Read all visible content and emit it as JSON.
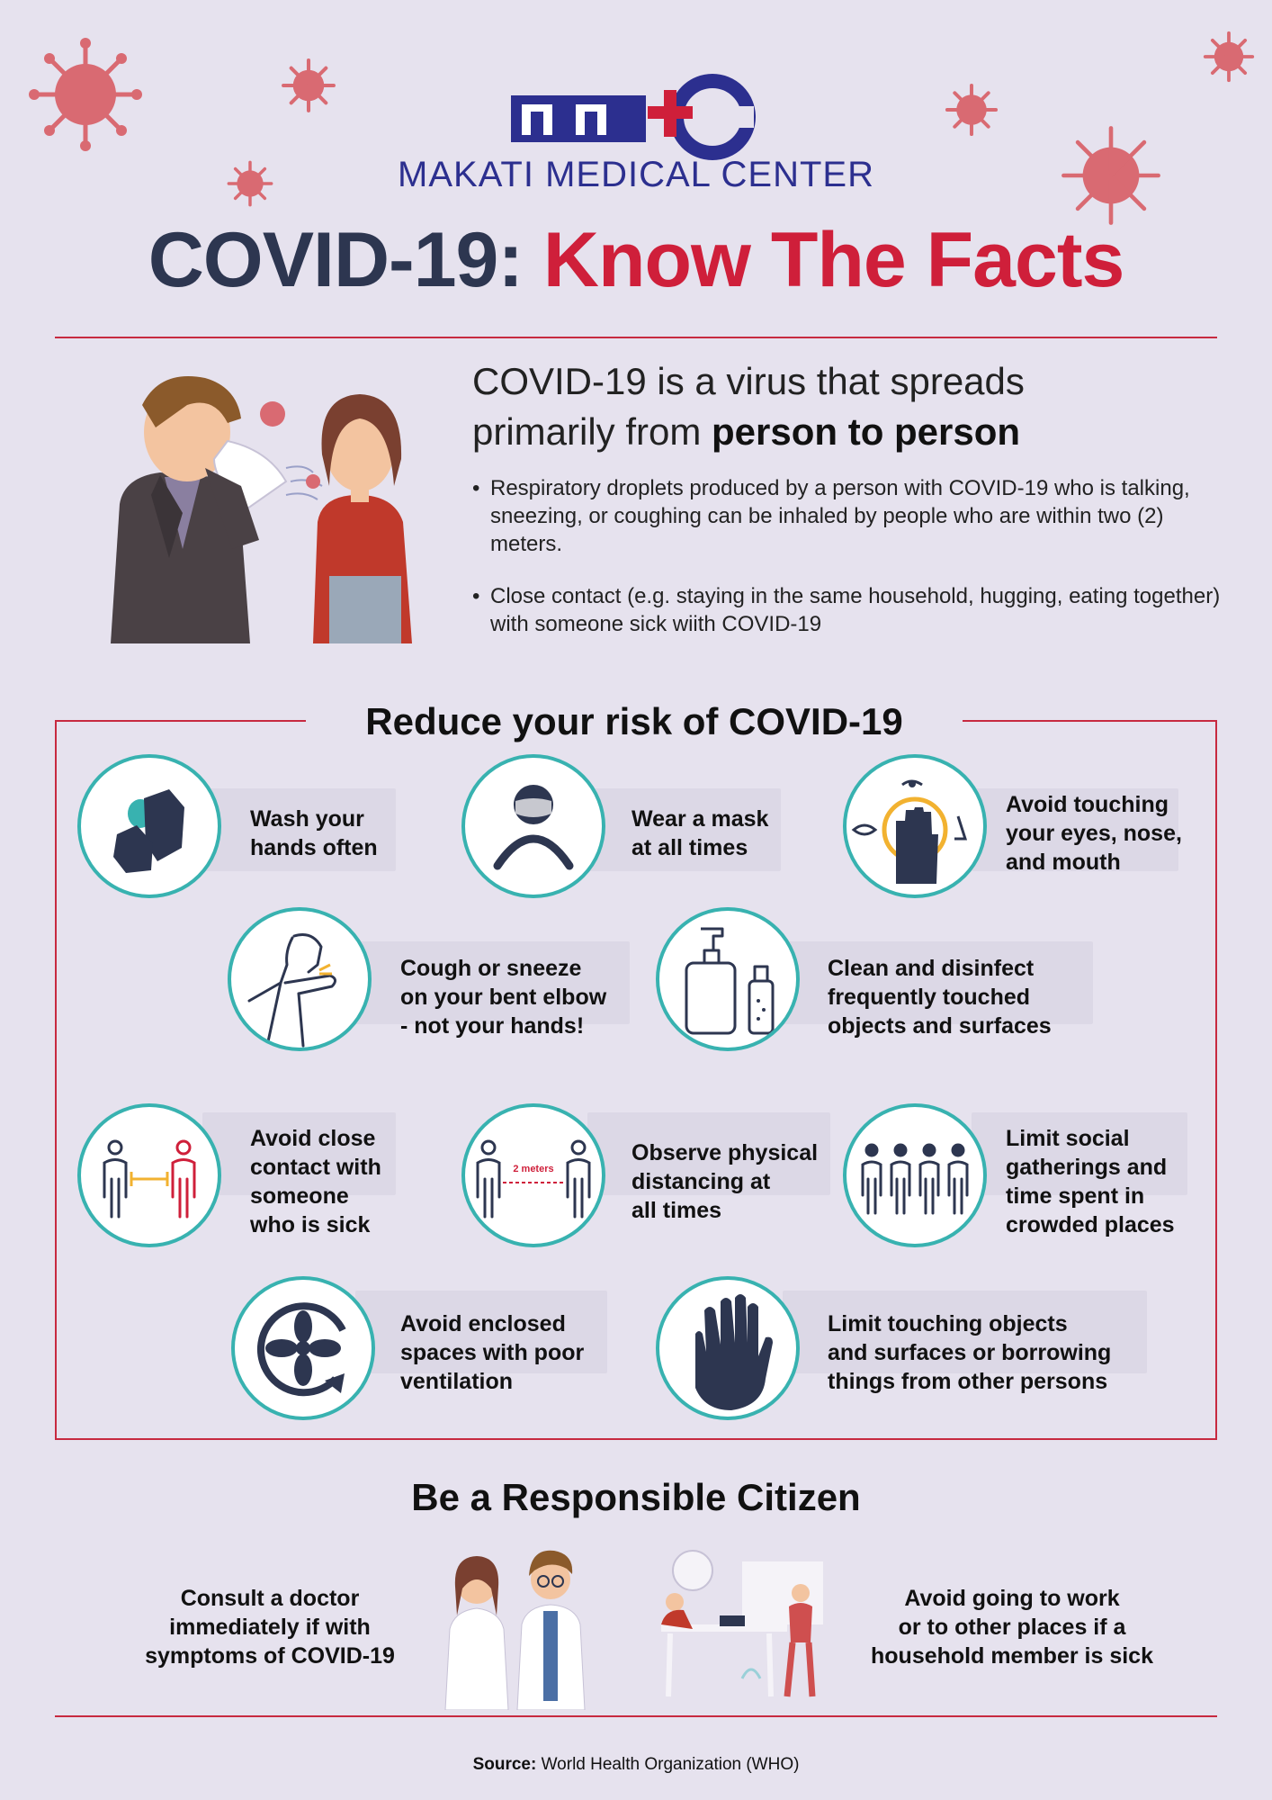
{
  "header": {
    "logo_text": "MMC",
    "org_name": "MAKATI MEDICAL CENTER",
    "title_part1": "COVID-19:",
    "title_part2": "Know The Facts"
  },
  "intro": {
    "heading_line1": "COVID-19 is a virus that spreads",
    "heading_line2_prefix": "primarily from ",
    "heading_line2_bold": "person to person",
    "bullets": [
      "Respiratory droplets produced by a person with COVID-19 who is talking, sneezing, or coughing can be inhaled by people who are within two (2) meters.",
      "Close contact (e.g. staying in the same household, hugging, eating together) with someone sick wiith COVID-19"
    ]
  },
  "risk": {
    "title": "Reduce your risk of COVID-19",
    "tips": [
      {
        "line1": "Wash your",
        "line2": "hands often",
        "icon": "hand-washing-icon"
      },
      {
        "line1": "Wear a mask",
        "line2": "at all times",
        "icon": "mask-person-icon"
      },
      {
        "line1": "Avoid touching",
        "line2": "your eyes, nose,",
        "line3": "and mouth",
        "icon": "no-face-touch-icon"
      },
      {
        "line1": "Cough or sneeze",
        "line2": "on your bent elbow",
        "line3": "- not your hands!",
        "icon": "elbow-cough-icon"
      },
      {
        "line1": "Clean and disinfect",
        "line2": "frequently touched",
        "line3": "objects and surfaces",
        "icon": "disinfectant-bottles-icon"
      },
      {
        "line1": "Avoid close",
        "line2": "contact with",
        "line3": "someone",
        "line4": "who is sick",
        "icon": "avoid-contact-icon"
      },
      {
        "line1": "Observe physical",
        "line2": "distancing at",
        "line3": "all times",
        "icon": "distancing-icon",
        "label": "2 meters"
      },
      {
        "line1": "Limit social",
        "line2": "gatherings and",
        "line3": "time spent in",
        "line4": "crowded places",
        "icon": "crowd-icon"
      },
      {
        "line1": "Avoid enclosed",
        "line2": "spaces with poor",
        "line3": "ventilation",
        "icon": "ventilation-fan-icon"
      },
      {
        "line1": "Limit touching objects",
        "line2": "and surfaces or borrowing",
        "line3": "things from other persons",
        "icon": "hand-icon"
      }
    ]
  },
  "responsible": {
    "title": "Be a Responsible Citizen",
    "left": {
      "line1": "Consult a doctor",
      "line2": "immediately if with",
      "line3": "symptoms of COVID-19"
    },
    "right": {
      "line1": "Avoid going to work",
      "line2": "or to other places if a",
      "line3": "household member is sick"
    }
  },
  "source": {
    "label": "Source:",
    "text": " World Health Organization (WHO)"
  },
  "colors": {
    "navy": "#2d3650",
    "red": "#cf1f3a",
    "teal": "#38b2b0",
    "virus": "#d96a72",
    "background": "#e6e2ee"
  }
}
